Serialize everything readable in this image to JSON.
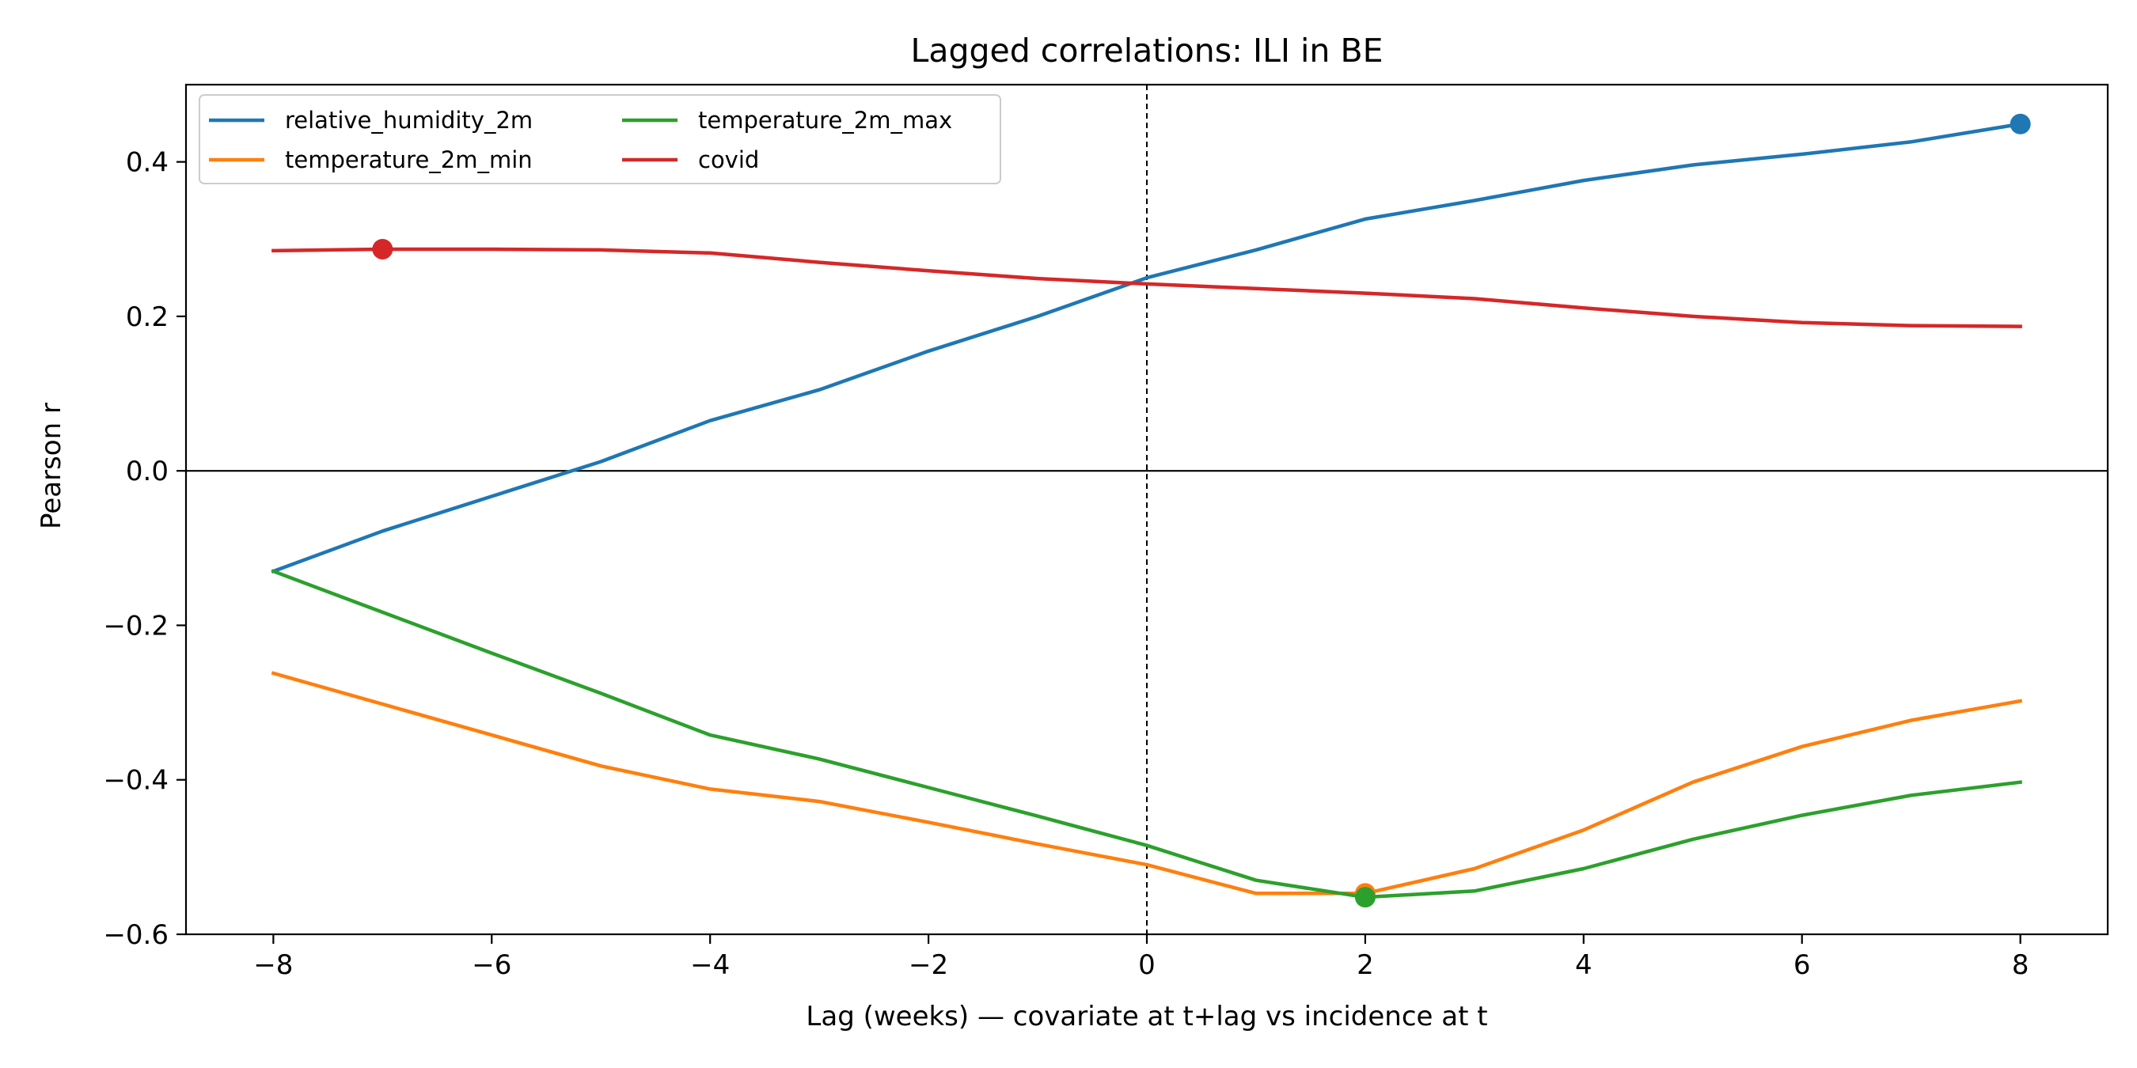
{
  "chart_data": {
    "type": "line",
    "title": "Lagged correlations: ILI in BE",
    "xlabel": "Lag (weeks) — covariate at t+lag vs incidence at t",
    "ylabel": "Pearson r",
    "xlim": [
      -8.8,
      8.8
    ],
    "ylim": [
      -0.6,
      0.5
    ],
    "xticks": [
      -8,
      -6,
      -4,
      -2,
      0,
      2,
      4,
      6,
      8
    ],
    "xtick_labels": [
      "−8",
      "−6",
      "−4",
      "−2",
      "0",
      "2",
      "4",
      "6",
      "8"
    ],
    "yticks": [
      -0.6,
      -0.4,
      -0.2,
      0.0,
      0.2,
      0.4
    ],
    "ytick_labels": [
      "−0.6",
      "−0.4",
      "−0.2",
      "0.0",
      "0.2",
      "0.4"
    ],
    "legend_position": "top-left",
    "grid": false,
    "reference_lines": {
      "vertical_dashed_x": 0,
      "horizontal_solid_y": 0
    },
    "x": [
      -8,
      -7,
      -6,
      -5,
      -4,
      -3,
      -2,
      -1,
      0,
      1,
      2,
      3,
      4,
      5,
      6,
      7,
      8
    ],
    "series": [
      {
        "name": "relative_humidity_2m",
        "color": "#1f77b4",
        "values": [
          -0.13,
          -0.078,
          -0.033,
          0.012,
          0.065,
          0.105,
          0.155,
          0.2,
          0.25,
          0.286,
          0.326,
          0.35,
          0.376,
          0.396,
          0.41,
          0.426,
          0.449
        ],
        "marker": {
          "x": 8,
          "y": 0.449
        }
      },
      {
        "name": "temperature_2m_min",
        "color": "#ff7f0e",
        "values": [
          -0.262,
          -0.302,
          -0.342,
          -0.382,
          -0.412,
          -0.428,
          -0.455,
          -0.483,
          -0.51,
          -0.547,
          -0.547,
          -0.515,
          -0.465,
          -0.403,
          -0.357,
          -0.323,
          -0.298
        ],
        "marker": {
          "x": 2,
          "y": -0.547
        }
      },
      {
        "name": "temperature_2m_max",
        "color": "#2ca02c",
        "values": [
          -0.13,
          -0.183,
          -0.236,
          -0.288,
          -0.342,
          -0.373,
          -0.41,
          -0.447,
          -0.485,
          -0.53,
          -0.552,
          -0.544,
          -0.515,
          -0.477,
          -0.446,
          -0.42,
          -0.403
        ],
        "marker": {
          "x": 2,
          "y": -0.552
        }
      },
      {
        "name": "covid",
        "color": "#d62728",
        "values": [
          0.285,
          0.287,
          0.287,
          0.286,
          0.282,
          0.27,
          0.259,
          0.249,
          0.242,
          0.236,
          0.23,
          0.223,
          0.211,
          0.2,
          0.192,
          0.188,
          0.187
        ],
        "marker": {
          "x": -7,
          "y": 0.287
        }
      }
    ]
  }
}
